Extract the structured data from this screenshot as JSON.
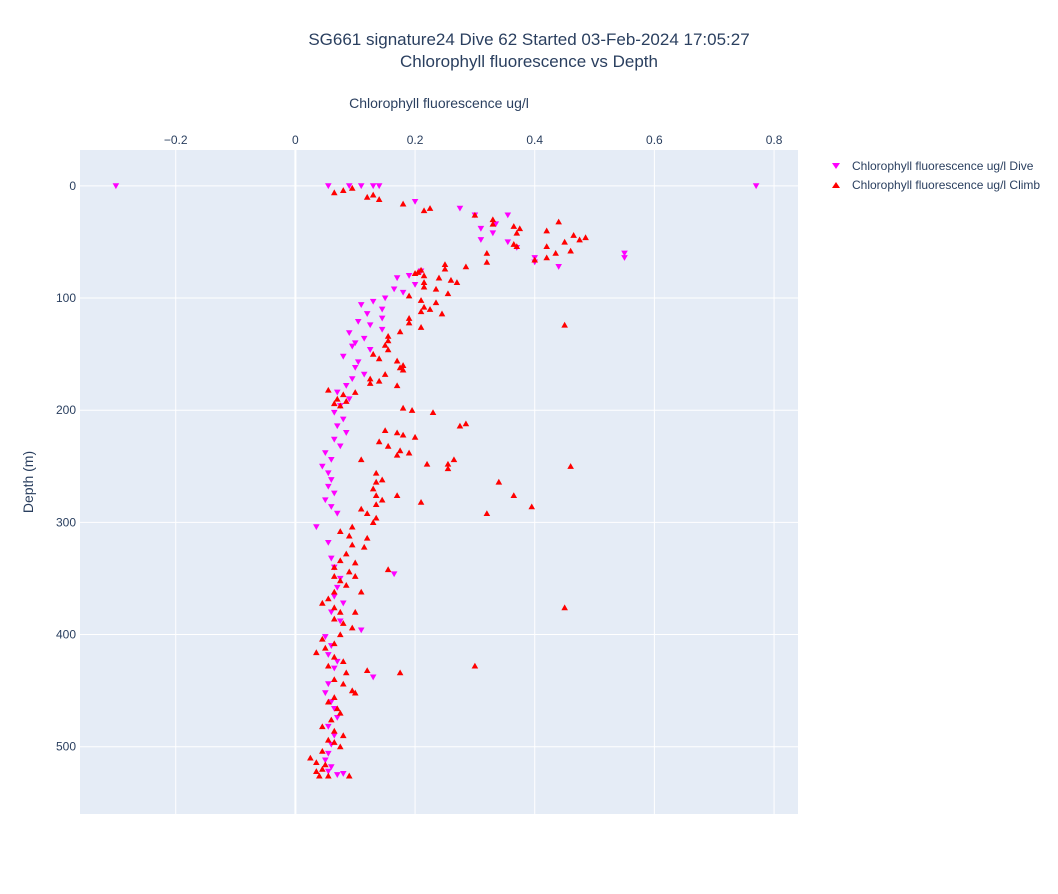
{
  "title_line1": "SG661 signature24 Dive 62 Started 03-Feb-2024 17:05:27",
  "title_line2": "Chlorophyll fluorescence vs Depth",
  "colors": {
    "dive": "#ff00ff",
    "climb": "#ff0000",
    "plot_bg": "#e5ecf6",
    "grid": "#ffffff"
  },
  "chart_data": {
    "type": "scatter",
    "xlabel": "Chlorophyll fluorescence ug/l",
    "ylabel": "Depth (m)",
    "xlim": [
      -0.36,
      0.84
    ],
    "ylim": [
      560,
      -32
    ],
    "x_ticks": [
      "−0.2",
      "0",
      "0.2",
      "0.4",
      "0.6",
      "0.8"
    ],
    "x_tick_values": [
      -0.2,
      0,
      0.2,
      0.4,
      0.6,
      0.8
    ],
    "y_ticks": [
      "0",
      "100",
      "200",
      "300",
      "400",
      "500"
    ],
    "y_tick_values": [
      0,
      100,
      200,
      300,
      400,
      500
    ],
    "legend_position": "top-right, outside plot",
    "grid": true,
    "series": [
      {
        "name": "Chlorophyll fluorescence ug/l Dive",
        "marker": "triangle-down",
        "points": [
          [
            -0.3,
            0
          ],
          [
            0.055,
            0
          ],
          [
            0.09,
            0
          ],
          [
            0.11,
            0
          ],
          [
            0.13,
            0
          ],
          [
            0.14,
            0
          ],
          [
            0.77,
            0
          ],
          [
            0.2,
            14
          ],
          [
            0.275,
            20
          ],
          [
            0.3,
            26
          ],
          [
            0.355,
            26
          ],
          [
            0.335,
            34
          ],
          [
            0.31,
            38
          ],
          [
            0.33,
            42
          ],
          [
            0.31,
            48
          ],
          [
            0.355,
            50
          ],
          [
            0.37,
            55
          ],
          [
            0.4,
            64
          ],
          [
            0.55,
            60
          ],
          [
            0.55,
            64
          ],
          [
            0.44,
            72
          ],
          [
            0.4,
            68
          ],
          [
            0.21,
            76
          ],
          [
            0.19,
            80
          ],
          [
            0.17,
            82
          ],
          [
            0.2,
            88
          ],
          [
            0.165,
            92
          ],
          [
            0.18,
            95
          ],
          [
            0.15,
            100
          ],
          [
            0.13,
            103
          ],
          [
            0.11,
            106
          ],
          [
            0.145,
            110
          ],
          [
            0.12,
            114
          ],
          [
            0.145,
            118
          ],
          [
            0.105,
            121
          ],
          [
            0.125,
            124
          ],
          [
            0.145,
            128
          ],
          [
            0.09,
            131
          ],
          [
            0.115,
            136
          ],
          [
            0.1,
            140
          ],
          [
            0.095,
            143
          ],
          [
            0.125,
            146
          ],
          [
            0.08,
            152
          ],
          [
            0.105,
            157
          ],
          [
            0.1,
            162
          ],
          [
            0.115,
            168
          ],
          [
            0.095,
            172
          ],
          [
            0.085,
            178
          ],
          [
            0.07,
            184
          ],
          [
            0.09,
            190
          ],
          [
            0.075,
            196
          ],
          [
            0.065,
            202
          ],
          [
            0.08,
            208
          ],
          [
            0.07,
            214
          ],
          [
            0.085,
            220
          ],
          [
            0.065,
            226
          ],
          [
            0.075,
            232
          ],
          [
            0.05,
            238
          ],
          [
            0.06,
            244
          ],
          [
            0.045,
            250
          ],
          [
            0.055,
            256
          ],
          [
            0.06,
            262
          ],
          [
            0.055,
            268
          ],
          [
            0.065,
            274
          ],
          [
            0.05,
            280
          ],
          [
            0.06,
            286
          ],
          [
            0.07,
            292
          ],
          [
            0.035,
            304
          ],
          [
            0.055,
            318
          ],
          [
            0.06,
            332
          ],
          [
            0.065,
            340
          ],
          [
            0.075,
            350
          ],
          [
            0.07,
            358
          ],
          [
            0.065,
            366
          ],
          [
            0.08,
            372
          ],
          [
            0.06,
            380
          ],
          [
            0.075,
            388
          ],
          [
            0.11,
            396
          ],
          [
            0.05,
            402
          ],
          [
            0.06,
            410
          ],
          [
            0.055,
            418
          ],
          [
            0.07,
            424
          ],
          [
            0.065,
            430
          ],
          [
            0.13,
            438
          ],
          [
            0.055,
            444
          ],
          [
            0.05,
            452
          ],
          [
            0.06,
            460
          ],
          [
            0.065,
            466
          ],
          [
            0.07,
            474
          ],
          [
            0.055,
            482
          ],
          [
            0.065,
            490
          ],
          [
            0.06,
            498
          ],
          [
            0.055,
            506
          ],
          [
            0.05,
            512
          ],
          [
            0.06,
            518
          ],
          [
            0.055,
            522
          ],
          [
            0.07,
            525
          ],
          [
            0.08,
            524
          ],
          [
            0.165,
            346
          ]
        ]
      },
      {
        "name": "Chlorophyll fluorescence ug/l Climb",
        "marker": "triangle-up",
        "points": [
          [
            0.065,
            6
          ],
          [
            0.08,
            4
          ],
          [
            0.095,
            2
          ],
          [
            0.12,
            10
          ],
          [
            0.13,
            8
          ],
          [
            0.14,
            12
          ],
          [
            0.18,
            16
          ],
          [
            0.215,
            22
          ],
          [
            0.225,
            20
          ],
          [
            0.3,
            26
          ],
          [
            0.33,
            30
          ],
          [
            0.33,
            34
          ],
          [
            0.365,
            36
          ],
          [
            0.375,
            38
          ],
          [
            0.37,
            42
          ],
          [
            0.44,
            32
          ],
          [
            0.42,
            40
          ],
          [
            0.465,
            44
          ],
          [
            0.485,
            46
          ],
          [
            0.475,
            48
          ],
          [
            0.45,
            50
          ],
          [
            0.365,
            52
          ],
          [
            0.37,
            54
          ],
          [
            0.42,
            54
          ],
          [
            0.46,
            58
          ],
          [
            0.32,
            60
          ],
          [
            0.435,
            60
          ],
          [
            0.42,
            64
          ],
          [
            0.4,
            66
          ],
          [
            0.32,
            68
          ],
          [
            0.25,
            70
          ],
          [
            0.285,
            72
          ],
          [
            0.25,
            74
          ],
          [
            0.21,
            75
          ],
          [
            0.205,
            77
          ],
          [
            0.2,
            78
          ],
          [
            0.215,
            80
          ],
          [
            0.24,
            82
          ],
          [
            0.26,
            84
          ],
          [
            0.215,
            86
          ],
          [
            0.27,
            86
          ],
          [
            0.215,
            90
          ],
          [
            0.235,
            92
          ],
          [
            0.255,
            96
          ],
          [
            0.19,
            98
          ],
          [
            0.21,
            102
          ],
          [
            0.235,
            104
          ],
          [
            0.215,
            108
          ],
          [
            0.225,
            110
          ],
          [
            0.21,
            112
          ],
          [
            0.245,
            114
          ],
          [
            0.19,
            118
          ],
          [
            0.19,
            122
          ],
          [
            0.21,
            126
          ],
          [
            0.45,
            124
          ],
          [
            0.175,
            130
          ],
          [
            0.155,
            134
          ],
          [
            0.155,
            138
          ],
          [
            0.15,
            142
          ],
          [
            0.155,
            146
          ],
          [
            0.13,
            150
          ],
          [
            0.14,
            154
          ],
          [
            0.17,
            156
          ],
          [
            0.18,
            160
          ],
          [
            0.175,
            162
          ],
          [
            0.18,
            164
          ],
          [
            0.15,
            168
          ],
          [
            0.125,
            172
          ],
          [
            0.14,
            174
          ],
          [
            0.125,
            176
          ],
          [
            0.17,
            178
          ],
          [
            0.055,
            182
          ],
          [
            0.1,
            184
          ],
          [
            0.08,
            186
          ],
          [
            0.07,
            190
          ],
          [
            0.085,
            192
          ],
          [
            0.065,
            194
          ],
          [
            0.075,
            196
          ],
          [
            0.18,
            198
          ],
          [
            0.195,
            200
          ],
          [
            0.23,
            202
          ],
          [
            0.275,
            214
          ],
          [
            0.285,
            212
          ],
          [
            0.15,
            218
          ],
          [
            0.17,
            220
          ],
          [
            0.18,
            222
          ],
          [
            0.2,
            224
          ],
          [
            0.14,
            228
          ],
          [
            0.155,
            232
          ],
          [
            0.175,
            236
          ],
          [
            0.17,
            240
          ],
          [
            0.19,
            238
          ],
          [
            0.11,
            244
          ],
          [
            0.265,
            244
          ],
          [
            0.22,
            248
          ],
          [
            0.255,
            248
          ],
          [
            0.255,
            252
          ],
          [
            0.46,
            250
          ],
          [
            0.135,
            256
          ],
          [
            0.145,
            262
          ],
          [
            0.135,
            264
          ],
          [
            0.13,
            270
          ],
          [
            0.135,
            276
          ],
          [
            0.17,
            276
          ],
          [
            0.145,
            280
          ],
          [
            0.135,
            284
          ],
          [
            0.21,
            282
          ],
          [
            0.34,
            264
          ],
          [
            0.365,
            276
          ],
          [
            0.395,
            286
          ],
          [
            0.32,
            292
          ],
          [
            0.11,
            288
          ],
          [
            0.12,
            292
          ],
          [
            0.135,
            296
          ],
          [
            0.13,
            300
          ],
          [
            0.095,
            304
          ],
          [
            0.075,
            308
          ],
          [
            0.09,
            312
          ],
          [
            0.12,
            314
          ],
          [
            0.095,
            320
          ],
          [
            0.115,
            322
          ],
          [
            0.085,
            328
          ],
          [
            0.075,
            334
          ],
          [
            0.1,
            336
          ],
          [
            0.065,
            340
          ],
          [
            0.09,
            344
          ],
          [
            0.065,
            348
          ],
          [
            0.155,
            342
          ],
          [
            0.1,
            348
          ],
          [
            0.075,
            352
          ],
          [
            0.085,
            356
          ],
          [
            0.065,
            362
          ],
          [
            0.11,
            362
          ],
          [
            0.055,
            368
          ],
          [
            0.045,
            372
          ],
          [
            0.065,
            376
          ],
          [
            0.075,
            380
          ],
          [
            0.1,
            380
          ],
          [
            0.065,
            386
          ],
          [
            0.08,
            390
          ],
          [
            0.095,
            394
          ],
          [
            0.075,
            400
          ],
          [
            0.045,
            404
          ],
          [
            0.065,
            408
          ],
          [
            0.05,
            412
          ],
          [
            0.035,
            416
          ],
          [
            0.065,
            420
          ],
          [
            0.08,
            424
          ],
          [
            0.055,
            428
          ],
          [
            0.12,
            432
          ],
          [
            0.085,
            434
          ],
          [
            0.175,
            434
          ],
          [
            0.3,
            428
          ],
          [
            0.065,
            440
          ],
          [
            0.08,
            444
          ],
          [
            0.095,
            450
          ],
          [
            0.1,
            452
          ],
          [
            0.065,
            456
          ],
          [
            0.055,
            460
          ],
          [
            0.07,
            466
          ],
          [
            0.075,
            470
          ],
          [
            0.06,
            476
          ],
          [
            0.045,
            482
          ],
          [
            0.065,
            486
          ],
          [
            0.08,
            490
          ],
          [
            0.055,
            494
          ],
          [
            0.065,
            496
          ],
          [
            0.075,
            500
          ],
          [
            0.045,
            504
          ],
          [
            0.025,
            510
          ],
          [
            0.035,
            514
          ],
          [
            0.05,
            516
          ],
          [
            0.045,
            520
          ],
          [
            0.035,
            522
          ],
          [
            0.04,
            526
          ],
          [
            0.055,
            526
          ],
          [
            0.09,
            526
          ],
          [
            0.45,
            376
          ]
        ]
      }
    ]
  }
}
